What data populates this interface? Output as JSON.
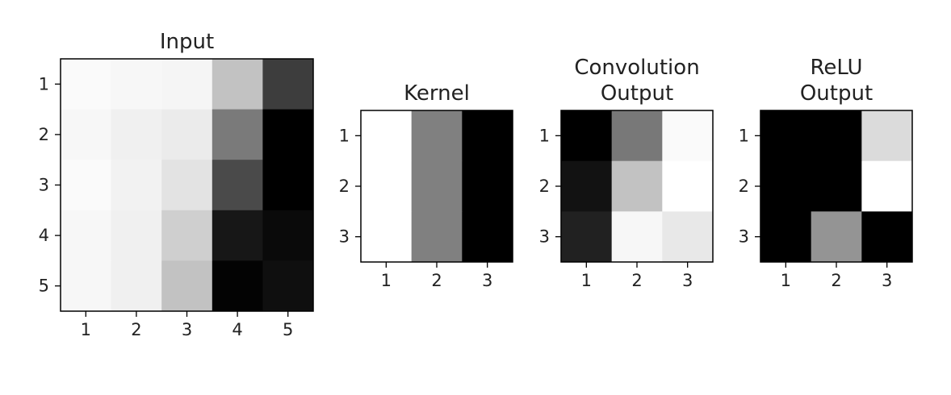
{
  "chart_data": [
    {
      "type": "heatmap",
      "title": "Input",
      "xticks": [
        "1",
        "2",
        "3",
        "4",
        "5"
      ],
      "yticks": [
        "1",
        "2",
        "3",
        "4",
        "5"
      ],
      "colormap": "gray",
      "values": [
        [
          0.98,
          0.97,
          0.96,
          0.76,
          0.24
        ],
        [
          0.97,
          0.94,
          0.92,
          0.48,
          0.0
        ],
        [
          0.98,
          0.95,
          0.89,
          0.29,
          0.0
        ],
        [
          0.97,
          0.94,
          0.81,
          0.09,
          0.04
        ],
        [
          0.97,
          0.94,
          0.76,
          0.01,
          0.06
        ]
      ]
    },
    {
      "type": "heatmap",
      "title": "Kernel",
      "xticks": [
        "1",
        "2",
        "3"
      ],
      "yticks": [
        "1",
        "2",
        "3"
      ],
      "colormap": "gray",
      "values": [
        [
          1.0,
          0.5,
          0.0
        ],
        [
          1.0,
          0.5,
          0.0
        ],
        [
          1.0,
          0.5,
          0.0
        ]
      ]
    },
    {
      "type": "heatmap",
      "title": "Convolution\nOutput",
      "xticks": [
        "1",
        "2",
        "3"
      ],
      "yticks": [
        "1",
        "2",
        "3"
      ],
      "colormap": "gray",
      "values": [
        [
          0.0,
          0.47,
          0.98
        ],
        [
          0.07,
          0.76,
          1.0
        ],
        [
          0.13,
          0.97,
          0.91
        ]
      ]
    },
    {
      "type": "heatmap",
      "title": "ReLU\nOutput",
      "xticks": [
        "1",
        "2",
        "3"
      ],
      "yticks": [
        "1",
        "2",
        "3"
      ],
      "colormap": "gray",
      "values": [
        [
          0.0,
          0.0,
          0.86
        ],
        [
          0.0,
          0.0,
          1.0
        ],
        [
          0.0,
          0.58,
          0.0
        ]
      ]
    }
  ]
}
